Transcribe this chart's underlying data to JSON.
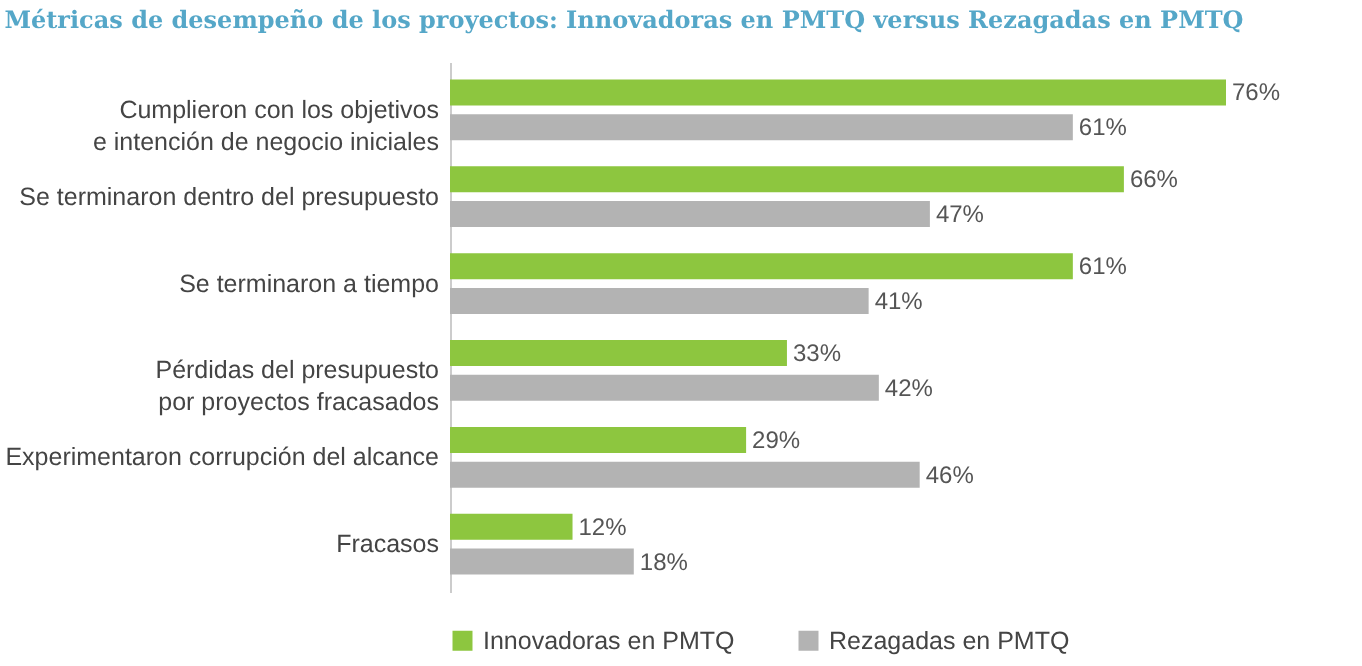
{
  "chart_data": {
    "type": "bar",
    "orientation": "horizontal",
    "title": "Métricas de desempeño de los proyectos: Innovadoras en PMTQ versus Rezagadas en PMTQ",
    "categories": [
      "Cumplieron con los objetivos\ne intención de negocio iniciales",
      "Se terminaron dentro del presupuesto",
      "Se terminaron a tiempo",
      "Pérdidas del presupuesto\npor proyectos fracasados",
      "Experimentaron corrupción del alcance",
      "Fracasos"
    ],
    "series": [
      {
        "name": "Innovadoras en PMTQ",
        "color": "#8dc63f",
        "values": [
          76,
          66,
          61,
          33,
          29,
          12
        ],
        "value_labels": [
          "76%",
          "66%",
          "61%",
          "33%",
          "29%",
          "12%"
        ]
      },
      {
        "name": "Rezagadas en PMTQ",
        "color": "#b3b3b3",
        "values": [
          61,
          47,
          41,
          42,
          46,
          18
        ],
        "value_labels": [
          "61%",
          "47%",
          "41%",
          "42%",
          "46%",
          "18%"
        ]
      }
    ],
    "legend": "bottom"
  }
}
